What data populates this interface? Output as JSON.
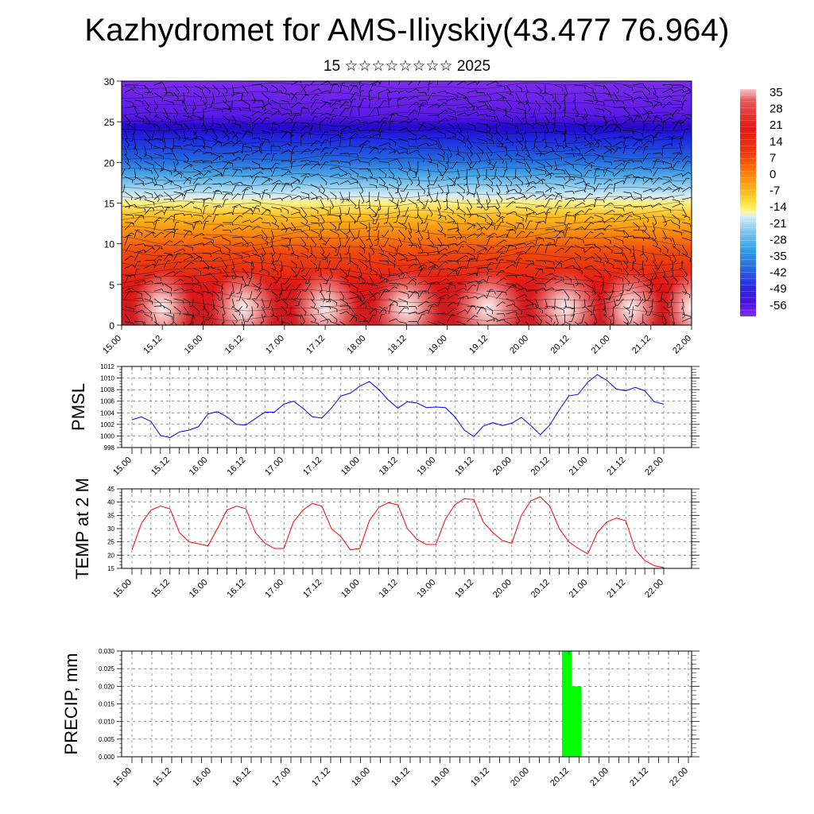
{
  "title": "Kazhydromet for AMS-Iliyskiy(43.477 76.964)",
  "subtitle": "15 ☆☆☆☆☆☆☆☆ 2025",
  "colors": {
    "pmsl_line": "#0000ff",
    "temp_line": "#ff0000",
    "precip_bar": "#00ff00",
    "axis": "#000000",
    "grid": "#555555"
  },
  "chart_data": [
    {
      "type": "heatmap",
      "ylim": [
        0,
        30
      ],
      "yticks": [
        "0",
        "5",
        "10",
        "15",
        "20",
        "25",
        "30"
      ],
      "ytick_values": [
        0,
        5,
        10,
        15,
        20,
        25,
        30
      ],
      "xlabels": [
        "15.00",
        "15.12",
        "16.00",
        "16.12",
        "17.00",
        "17.12",
        "18.00",
        "18.12",
        "19.00",
        "19.12",
        "20.00",
        "20.12",
        "21.00",
        "21.12",
        "22.00"
      ],
      "colorbar_labels": [
        "35",
        "28",
        "21",
        "14",
        "7",
        "0",
        "-7",
        "-14",
        "-21",
        "-28",
        "-35",
        "-42",
        "-49",
        "-56"
      ],
      "colorbar_values": [
        35,
        28,
        21,
        14,
        7,
        0,
        -7,
        -14,
        -21,
        -28,
        -35,
        -42,
        -49,
        -56
      ],
      "wind_barbs": true
    },
    {
      "type": "line",
      "ylabel": "PMSL",
      "ylim": [
        998,
        1012
      ],
      "yticks": [
        "998",
        "1000",
        "1002",
        "1004",
        "1006",
        "1008",
        "1010",
        "1012"
      ],
      "ytick_values": [
        998,
        1000,
        1002,
        1004,
        1006,
        1008,
        1010,
        1012
      ],
      "xlabels": [
        "15.00",
        "15.12",
        "16.00",
        "16.12",
        "17.00",
        "17.12",
        "18.00",
        "18.12",
        "19.00",
        "19.12",
        "20.00",
        "20.12",
        "21.00",
        "21.12",
        "22.00"
      ],
      "series": [
        {
          "values": [
            1002.8,
            1003.3,
            1002.5,
            1000.1,
            999.7,
            1000.7,
            1001.0,
            1001.6,
            1003.8,
            1004.2,
            1003.3,
            1002.0,
            1001.9,
            1003.0,
            1004.1,
            1004.1,
            1005.5,
            1006.0,
            1004.8,
            1003.3,
            1003.1,
            1004.8,
            1006.9,
            1007.4,
            1008.6,
            1009.4,
            1008.0,
            1006.2,
            1004.8,
            1005.9,
            1005.7,
            1004.9,
            1005.0,
            1004.9,
            1003.3,
            1001.0,
            999.9,
            1001.7,
            1002.3,
            1001.8,
            1002.2,
            1003.2,
            1001.8,
            1000.2,
            1001.9,
            1004.5,
            1006.9,
            1007.2,
            1009.3,
            1010.6,
            1009.6,
            1008.1,
            1007.8,
            1008.4,
            1007.8,
            1005.9,
            1005.5
          ]
        }
      ]
    },
    {
      "type": "line",
      "ylabel": "TEMP at 2 M",
      "ylim": [
        15,
        45
      ],
      "yticks": [
        "15",
        "20",
        "25",
        "30",
        "35",
        "40",
        "45"
      ],
      "ytick_values": [
        15,
        20,
        25,
        30,
        35,
        40,
        45
      ],
      "xlabels": [
        "15.00",
        "15.12",
        "16.00",
        "16.12",
        "17.00",
        "17.12",
        "18.00",
        "18.12",
        "19.00",
        "19.12",
        "20.00",
        "20.12",
        "21.00",
        "21.12",
        "22.00"
      ],
      "series": [
        {
          "values": [
            22.0,
            32.0,
            37.0,
            38.5,
            37.5,
            28.5,
            25.0,
            24.3,
            23.5,
            30.0,
            37.0,
            38.5,
            37.5,
            28.5,
            24.5,
            22.5,
            22.5,
            32.5,
            37.0,
            39.5,
            38.5,
            30.0,
            27.0,
            22.0,
            22.5,
            33.0,
            38.0,
            39.8,
            39.0,
            30.0,
            26.0,
            24.0,
            24.0,
            33.5,
            39.0,
            41.3,
            41.0,
            32.5,
            28.5,
            25.5,
            24.5,
            35.0,
            40.5,
            42.0,
            38.5,
            30.0,
            25.0,
            22.5,
            20.5,
            28.5,
            32.5,
            34.0,
            33.0,
            22.0,
            18.0,
            16.0,
            15.3
          ]
        }
      ]
    },
    {
      "type": "bar",
      "ylabel": "PRECIP, mm",
      "ylim": [
        0,
        0.03
      ],
      "yticks": [
        "0.000",
        "0.005",
        "0.010",
        "0.015",
        "0.020",
        "0.025",
        "0.030"
      ],
      "ytick_values": [
        0,
        0.005,
        0.01,
        0.015,
        0.02,
        0.025,
        0.03
      ],
      "xlabels": [
        "15.00",
        "15.12",
        "16.00",
        "16.12",
        "17.00",
        "17.12",
        "18.00",
        "18.12",
        "19.00",
        "19.12",
        "20.00",
        "20.12",
        "21.00",
        "21.12",
        "22.00"
      ],
      "bars": [
        {
          "x": 66,
          "value": 0.03
        },
        {
          "x": 69,
          "value": 0.02
        }
      ]
    }
  ]
}
